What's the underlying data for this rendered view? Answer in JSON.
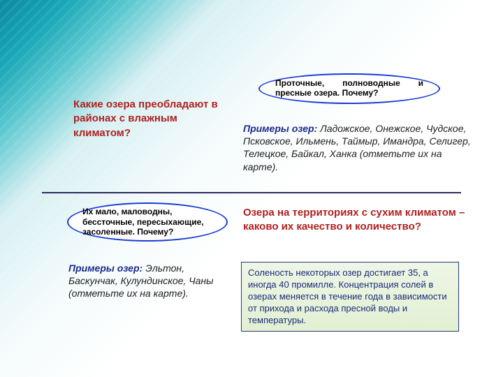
{
  "colors": {
    "bg_gradient_start": "#0b8a9e",
    "bg_gradient_end": "#ffffff",
    "question_text": "#b02020",
    "bubble_border": "#1a3bd6",
    "examples_lead": "#1a2a8a",
    "hr": "#2a2a60",
    "infobox_bg_top": "#eef6e6",
    "infobox_bg_bottom": "#e2f0d2",
    "infobox_border": "#2a3a7a",
    "infobox_text": "#1a2a7a"
  },
  "fonts": {
    "family": "Arial",
    "question_size_pt": 11,
    "bubble_size_pt": 9,
    "body_size_pt": 10.5,
    "infobox_size_pt": 10
  },
  "section1": {
    "question": "Какие озера преобладают в районах с влажным климатом?",
    "bubble": "Проточные, полноводные и пресные озера. Почему?",
    "examples_lead": "Примеры озер:",
    "examples_body": " Ладожское, Онежское, Чудское, Псковское, Ильмень, Таймыр, Имандра, Селигер, Телецкое, Байкал, Ханка (отметьте их на карте)."
  },
  "section2": {
    "bubble": "Их мало, маловодны, бессточные, пересыхающие, засоленные. Почему?",
    "question": "Озера на территориях с сухим климатом – каково их качество и количество?",
    "examples_lead": "Примеры озер:",
    "examples_body": " Эльтон, Баскунчак, Кулундинское, Чаны (отметьте их на карте).",
    "infobox": "Соленость некоторых озер достигает 35, а иногда 40 промилле. Концентрация солей в озерах меняется в течение года в зависимости от прихода и расхода пресной воды и температуры."
  }
}
